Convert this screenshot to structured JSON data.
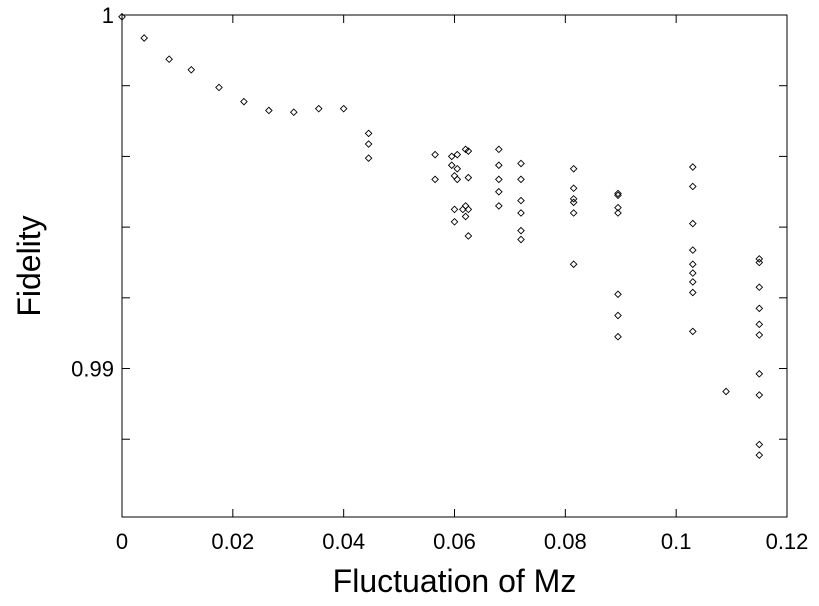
{
  "chart_data": {
    "type": "scatter",
    "title": "",
    "xlabel": "Fluctuation of Mz",
    "ylabel": "Fidelity",
    "xlim": [
      0,
      0.12
    ],
    "ylim": [
      0.9858,
      1.0
    ],
    "grid": false,
    "marker": "diamond-open",
    "marker_color": "#000000",
    "xticks": [
      {
        "value": 0,
        "label": "0"
      },
      {
        "value": 0.02,
        "label": "0.02"
      },
      {
        "value": 0.04,
        "label": "0.04"
      },
      {
        "value": 0.06,
        "label": "0.06"
      },
      {
        "value": 0.08,
        "label": "0.08"
      },
      {
        "value": 0.1,
        "label": "0.1"
      },
      {
        "value": 0.12,
        "label": "0.12"
      }
    ],
    "yticks": [
      {
        "value": 1.0,
        "label": "1"
      },
      {
        "value": 0.998,
        "label": ""
      },
      {
        "value": 0.996,
        "label": ""
      },
      {
        "value": 0.994,
        "label": ""
      },
      {
        "value": 0.992,
        "label": ""
      },
      {
        "value": 0.99,
        "label": "0.99"
      },
      {
        "value": 0.988,
        "label": ""
      }
    ],
    "series": [
      {
        "points": [
          [
            0.0,
            0.99995
          ],
          [
            0.004,
            0.99935
          ],
          [
            0.0085,
            0.99875
          ],
          [
            0.0125,
            0.99845
          ],
          [
            0.0175,
            0.99795
          ],
          [
            0.022,
            0.99755
          ],
          [
            0.0265,
            0.9973
          ],
          [
            0.031,
            0.99725
          ],
          [
            0.0355,
            0.99735
          ],
          [
            0.04,
            0.99735
          ],
          [
            0.0445,
            0.99665
          ],
          [
            0.0445,
            0.99635
          ],
          [
            0.0445,
            0.99595
          ],
          [
            0.0565,
            0.99605
          ],
          [
            0.0565,
            0.99535
          ],
          [
            0.0595,
            0.996
          ],
          [
            0.0595,
            0.99575
          ],
          [
            0.06,
            0.99545
          ],
          [
            0.06,
            0.9945
          ],
          [
            0.06,
            0.99415
          ],
          [
            0.0605,
            0.99605
          ],
          [
            0.0605,
            0.99565
          ],
          [
            0.0605,
            0.99535
          ],
          [
            0.0615,
            0.9945
          ],
          [
            0.062,
            0.9962
          ],
          [
            0.0625,
            0.99615
          ],
          [
            0.0625,
            0.9954
          ],
          [
            0.062,
            0.9946
          ],
          [
            0.062,
            0.9943
          ],
          [
            0.0625,
            0.9945
          ],
          [
            0.0625,
            0.99375
          ],
          [
            0.068,
            0.9962
          ],
          [
            0.068,
            0.99575
          ],
          [
            0.068,
            0.99535
          ],
          [
            0.068,
            0.995
          ],
          [
            0.068,
            0.9946
          ],
          [
            0.072,
            0.9958
          ],
          [
            0.072,
            0.99535
          ],
          [
            0.072,
            0.99475
          ],
          [
            0.072,
            0.9944
          ],
          [
            0.072,
            0.9939
          ],
          [
            0.072,
            0.99365
          ],
          [
            0.0815,
            0.99565
          ],
          [
            0.0815,
            0.9951
          ],
          [
            0.0815,
            0.9948
          ],
          [
            0.0815,
            0.9947
          ],
          [
            0.0815,
            0.9944
          ],
          [
            0.0815,
            0.99295
          ],
          [
            0.0895,
            0.99495
          ],
          [
            0.0895,
            0.9949
          ],
          [
            0.0895,
            0.99455
          ],
          [
            0.0895,
            0.9944
          ],
          [
            0.0895,
            0.9921
          ],
          [
            0.0895,
            0.9915
          ],
          [
            0.0895,
            0.9909
          ],
          [
            0.103,
            0.9957
          ],
          [
            0.103,
            0.99515
          ],
          [
            0.103,
            0.9941
          ],
          [
            0.103,
            0.99335
          ],
          [
            0.103,
            0.99295
          ],
          [
            0.103,
            0.9927
          ],
          [
            0.103,
            0.99245
          ],
          [
            0.103,
            0.99215
          ],
          [
            0.103,
            0.99105
          ],
          [
            0.109,
            0.98935
          ],
          [
            0.115,
            0.9931
          ],
          [
            0.115,
            0.993
          ],
          [
            0.115,
            0.9923
          ],
          [
            0.115,
            0.9917
          ],
          [
            0.115,
            0.99125
          ],
          [
            0.115,
            0.99095
          ],
          [
            0.115,
            0.98985
          ],
          [
            0.115,
            0.98925
          ],
          [
            0.115,
            0.98785
          ],
          [
            0.115,
            0.98755
          ]
        ]
      }
    ]
  }
}
